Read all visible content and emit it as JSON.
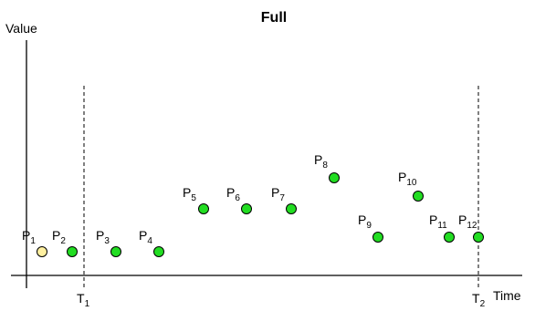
{
  "title": "Full",
  "axes": {
    "y_label": "Value",
    "x_label": "Time"
  },
  "markers": [
    {
      "id": "t1",
      "base": "T",
      "sub": "1"
    },
    {
      "id": "t2",
      "base": "T",
      "sub": "2"
    }
  ],
  "points": [
    {
      "base": "P",
      "sub": "1",
      "style": "highlight"
    },
    {
      "base": "P",
      "sub": "2",
      "style": "normal"
    },
    {
      "base": "P",
      "sub": "3",
      "style": "normal"
    },
    {
      "base": "P",
      "sub": "4",
      "style": "normal"
    },
    {
      "base": "P",
      "sub": "5",
      "style": "normal"
    },
    {
      "base": "P",
      "sub": "6",
      "style": "normal"
    },
    {
      "base": "P",
      "sub": "7",
      "style": "normal"
    },
    {
      "base": "P",
      "sub": "8",
      "style": "normal"
    },
    {
      "base": "P",
      "sub": "9",
      "style": "normal"
    },
    {
      "base": "P",
      "sub": "10",
      "style": "normal"
    },
    {
      "base": "P",
      "sub": "11",
      "style": "normal"
    },
    {
      "base": "P",
      "sub": "12",
      "style": "normal"
    }
  ],
  "colors": {
    "normal_fill": "#22dd22",
    "highlight_fill": "#fff0a0",
    "point_stroke": "#000000",
    "axis": "#000000",
    "text": "#000000"
  }
}
